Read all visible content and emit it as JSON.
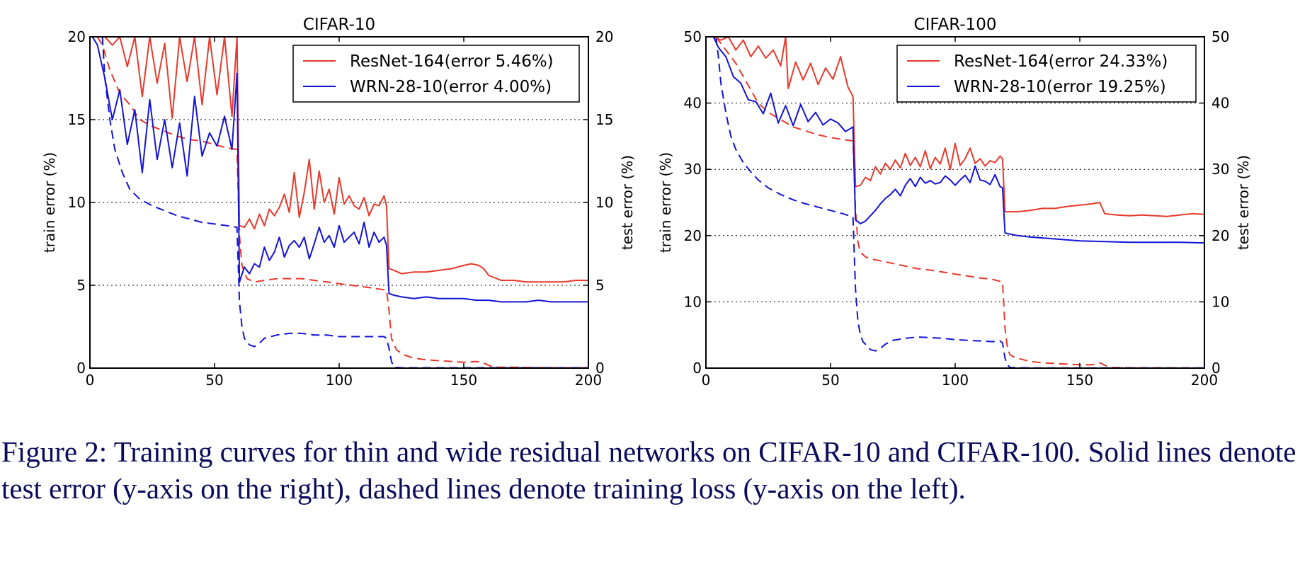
{
  "chart_data": [
    {
      "type": "line",
      "title": "CIFAR-10",
      "xlabel": "",
      "ylabel_left": "train error (%)",
      "ylabel_right": "test error (%)",
      "xlim": [
        0,
        200
      ],
      "ylim": [
        0,
        20
      ],
      "xticks": [
        "0",
        "50",
        "100",
        "150",
        "200"
      ],
      "yticks": [
        "0",
        "5",
        "10",
        "15",
        "20"
      ],
      "grid": "horizontal dotted",
      "legend_position": "top-right",
      "series": [
        {
          "name": "ResNet-164(error 5.46%)",
          "metric": "test",
          "color": "#e8392b",
          "x": [
            1,
            3,
            6,
            9,
            12,
            15,
            18,
            21,
            24,
            27,
            30,
            33,
            36,
            39,
            42,
            45,
            48,
            51,
            54,
            57,
            59,
            60,
            62,
            64,
            66,
            68,
            70,
            72,
            74,
            76,
            78,
            80,
            82,
            84,
            86,
            88,
            90,
            92,
            94,
            96,
            98,
            100,
            102,
            104,
            106,
            108,
            110,
            112,
            114,
            116,
            118,
            119,
            120,
            122,
            125,
            130,
            135,
            140,
            145,
            150,
            153,
            156,
            158,
            160,
            165,
            170,
            175,
            180,
            185,
            190,
            195,
            200
          ],
          "y": [
            20,
            20,
            20,
            19.5,
            20,
            18.2,
            20,
            16.4,
            20,
            17.2,
            19.6,
            15.1,
            20,
            17.3,
            20,
            15.9,
            20,
            16.5,
            20,
            15.2,
            20,
            8.6,
            8.5,
            9.0,
            8.4,
            9.3,
            8.6,
            9.6,
            9.2,
            9.7,
            10.5,
            9.4,
            11.8,
            9.1,
            10.6,
            12.6,
            9.6,
            11.9,
            10.0,
            10.8,
            9.3,
            11.5,
            9.9,
            10.4,
            9.8,
            9.6,
            10.3,
            9.2,
            9.9,
            9.8,
            10.4,
            9.8,
            6.0,
            5.9,
            5.7,
            5.8,
            5.8,
            5.9,
            6.0,
            6.2,
            6.3,
            6.2,
            6.0,
            5.6,
            5.3,
            5.3,
            5.2,
            5.2,
            5.2,
            5.2,
            5.3,
            5.3
          ]
        },
        {
          "name": "WRN-28-10(error 4.00%)",
          "metric": "test",
          "color": "#1414d6",
          "x": [
            1,
            3,
            6,
            9,
            12,
            15,
            18,
            21,
            24,
            27,
            30,
            33,
            36,
            39,
            42,
            45,
            48,
            51,
            54,
            57,
            59,
            60,
            62,
            64,
            66,
            68,
            70,
            72,
            74,
            76,
            78,
            80,
            82,
            84,
            86,
            88,
            90,
            92,
            94,
            96,
            98,
            100,
            102,
            104,
            106,
            108,
            110,
            112,
            114,
            116,
            118,
            119,
            120,
            122,
            125,
            130,
            135,
            140,
            145,
            150,
            155,
            160,
            165,
            170,
            175,
            180,
            185,
            190,
            195,
            200
          ],
          "y": [
            20,
            19.5,
            17.5,
            15.0,
            16.8,
            13.5,
            15.6,
            11.8,
            16.2,
            12.6,
            15.0,
            12.1,
            14.8,
            11.6,
            16.4,
            12.8,
            14.2,
            13.4,
            15.2,
            13.2,
            17.8,
            5.2,
            6.1,
            5.7,
            6.3,
            6.1,
            7.3,
            6.5,
            7.0,
            7.9,
            6.7,
            7.4,
            7.7,
            7.3,
            7.9,
            6.6,
            7.5,
            8.5,
            7.6,
            8.0,
            7.3,
            8.6,
            7.6,
            7.9,
            8.2,
            7.5,
            8.8,
            7.3,
            8.2,
            7.6,
            7.9,
            7.4,
            4.5,
            4.4,
            4.3,
            4.2,
            4.3,
            4.2,
            4.2,
            4.2,
            4.1,
            4.1,
            4.0,
            4.0,
            4.0,
            4.1,
            4.0,
            4.0,
            4.0,
            4.0
          ]
        },
        {
          "name": "",
          "metric": "train",
          "color": "#e8392b",
          "x": [
            3,
            5,
            8,
            12,
            16,
            20,
            25,
            30,
            35,
            40,
            45,
            50,
            55,
            59,
            60,
            61,
            63,
            66,
            70,
            75,
            80,
            85,
            90,
            95,
            100,
            105,
            110,
            115,
            119,
            120,
            121,
            123,
            126,
            130,
            135,
            140,
            145,
            150,
            155,
            158,
            162,
            170,
            180,
            190,
            200
          ],
          "y": [
            20,
            19.5,
            18.0,
            16.6,
            15.9,
            15.0,
            14.6,
            14.3,
            14.0,
            13.8,
            13.7,
            13.5,
            13.3,
            13.2,
            8.0,
            6.2,
            5.4,
            5.2,
            5.3,
            5.4,
            5.4,
            5.4,
            5.3,
            5.2,
            5.1,
            5.0,
            4.9,
            4.8,
            4.7,
            3.5,
            1.8,
            1.1,
            0.8,
            0.6,
            0.5,
            0.45,
            0.4,
            0.35,
            0.4,
            0.3,
            0.05,
            0.05,
            0.03,
            0.02,
            0.02
          ]
        },
        {
          "name": "",
          "metric": "train",
          "color": "#1414d6",
          "x": [
            5,
            6,
            8,
            10,
            13,
            16,
            20,
            25,
            30,
            35,
            40,
            45,
            50,
            55,
            59,
            60,
            61,
            62,
            64,
            66,
            68,
            70,
            75,
            80,
            85,
            90,
            95,
            100,
            105,
            110,
            115,
            118,
            119,
            120,
            121,
            122,
            125,
            130,
            140,
            150,
            160,
            170,
            180,
            190,
            200
          ],
          "y": [
            20,
            17.5,
            15.0,
            13.2,
            11.8,
            10.8,
            10.2,
            9.8,
            9.5,
            9.2,
            9.0,
            8.8,
            8.7,
            8.6,
            8.5,
            4.0,
            2.5,
            1.8,
            1.4,
            1.3,
            1.5,
            1.8,
            2.0,
            2.1,
            2.1,
            2.0,
            2.0,
            1.9,
            1.9,
            1.9,
            1.9,
            1.9,
            1.8,
            1.2,
            0.4,
            0.05,
            0.02,
            0.02,
            0.02,
            0.02,
            0.02,
            0.02,
            0.02,
            0.02,
            0.02
          ]
        }
      ]
    },
    {
      "type": "line",
      "title": "CIFAR-100",
      "xlabel": "",
      "ylabel_left": "train error (%)",
      "ylabel_right": "test error (%)",
      "xlim": [
        0,
        200
      ],
      "ylim": [
        0,
        50
      ],
      "xticks": [
        "0",
        "50",
        "100",
        "150",
        "200"
      ],
      "yticks": [
        "0",
        "10",
        "20",
        "30",
        "40",
        "50"
      ],
      "grid": "horizontal dotted",
      "legend_position": "top-right",
      "series": [
        {
          "name": "ResNet-164(error 24.33%)",
          "metric": "test",
          "color": "#e8392b",
          "x": [
            3,
            6,
            9,
            12,
            15,
            18,
            21,
            24,
            27,
            30,
            32,
            33,
            36,
            39,
            42,
            45,
            48,
            51,
            54,
            57,
            59,
            60,
            62,
            64,
            66,
            68,
            70,
            72,
            74,
            76,
            78,
            80,
            82,
            84,
            86,
            88,
            90,
            92,
            94,
            96,
            98,
            100,
            102,
            104,
            106,
            108,
            110,
            112,
            114,
            116,
            118,
            119,
            120,
            125,
            130,
            135,
            140,
            145,
            150,
            155,
            158,
            160,
            165,
            170,
            175,
            180,
            185,
            190,
            195,
            200
          ],
          "y": [
            50,
            49.5,
            50,
            48.0,
            49.5,
            47.0,
            48.6,
            46.8,
            48.0,
            45.6,
            50,
            42.2,
            46.2,
            43.5,
            46.0,
            42.8,
            45.3,
            43.6,
            47.0,
            42.4,
            41.0,
            27.4,
            27.6,
            28.8,
            28.3,
            30.4,
            29.3,
            30.9,
            30.0,
            31.4,
            30.2,
            32.4,
            30.6,
            31.8,
            30.4,
            32.8,
            30.1,
            31.8,
            30.8,
            33.2,
            30.0,
            33.9,
            30.6,
            31.6,
            33.2,
            30.9,
            31.6,
            30.5,
            31.3,
            31.0,
            32.0,
            31.6,
            23.6,
            23.6,
            23.8,
            24.1,
            24.1,
            24.4,
            24.6,
            24.8,
            25.0,
            23.3,
            23.1,
            23.0,
            23.1,
            23.0,
            22.9,
            23.1,
            23.3,
            23.2
          ]
        },
        {
          "name": "WRN-28-10(error 19.25%)",
          "metric": "test",
          "color": "#1414d6",
          "x": [
            3,
            5,
            8,
            11,
            14,
            17,
            20,
            23,
            26,
            29,
            32,
            35,
            38,
            41,
            44,
            47,
            50,
            53,
            56,
            59,
            60,
            62,
            64,
            66,
            68,
            70,
            72,
            74,
            76,
            78,
            80,
            82,
            84,
            86,
            88,
            90,
            92,
            94,
            96,
            98,
            100,
            102,
            104,
            106,
            108,
            110,
            112,
            114,
            116,
            118,
            119,
            120,
            125,
            130,
            140,
            150,
            160,
            170,
            180,
            190,
            200
          ],
          "y": [
            50,
            48.4,
            47.0,
            44.0,
            43.0,
            40.5,
            40.2,
            38.4,
            41.5,
            37.0,
            39.6,
            36.6,
            39.8,
            37.2,
            38.6,
            36.7,
            37.6,
            37.0,
            35.7,
            36.4,
            22.4,
            21.8,
            22.2,
            23.0,
            23.8,
            24.8,
            25.6,
            26.2,
            27.0,
            26.0,
            27.6,
            28.6,
            27.4,
            28.8,
            27.9,
            28.3,
            27.8,
            28.0,
            29.0,
            28.4,
            27.6,
            28.4,
            29.1,
            28.0,
            30.5,
            28.4,
            28.2,
            27.7,
            29.2,
            27.4,
            27.2,
            20.4,
            20.0,
            19.8,
            19.5,
            19.2,
            19.1,
            19.0,
            19.0,
            19.0,
            18.9
          ]
        },
        {
          "name": "",
          "metric": "train",
          "color": "#e8392b",
          "x": [
            4,
            6,
            8,
            10,
            12,
            15,
            18,
            21,
            25,
            30,
            35,
            40,
            45,
            50,
            55,
            59,
            60,
            61,
            62,
            64,
            66,
            70,
            75,
            80,
            85,
            90,
            95,
            100,
            105,
            110,
            115,
            119,
            120,
            121,
            122,
            124,
            127,
            130,
            135,
            140,
            145,
            150,
            155,
            158,
            162,
            170,
            180,
            190,
            200
          ],
          "y": [
            50,
            49.0,
            48.0,
            47.0,
            46.0,
            44.0,
            42.0,
            40.0,
            38.6,
            37.5,
            36.4,
            35.8,
            35.2,
            34.8,
            34.5,
            34.3,
            24.0,
            19.0,
            17.5,
            16.8,
            16.5,
            16.2,
            15.8,
            15.4,
            15.0,
            14.8,
            14.5,
            14.2,
            13.9,
            13.6,
            13.4,
            13.0,
            6.0,
            3.0,
            2.0,
            1.6,
            1.3,
            1.0,
            0.8,
            0.7,
            0.6,
            0.5,
            0.5,
            0.8,
            0.1,
            0.05,
            0.04,
            0.03,
            0.03
          ]
        },
        {
          "name": "",
          "metric": "train",
          "color": "#1414d6",
          "x": [
            4,
            5,
            6,
            8,
            10,
            12,
            15,
            18,
            21,
            25,
            30,
            35,
            40,
            45,
            50,
            55,
            59,
            60,
            61,
            62,
            63,
            64,
            65,
            66,
            68,
            70,
            72,
            75,
            80,
            85,
            90,
            95,
            100,
            105,
            110,
            115,
            118,
            119,
            120,
            121,
            122,
            125,
            130,
            140,
            150,
            160,
            170,
            180,
            190,
            200
          ],
          "y": [
            50,
            47.0,
            43.0,
            38.5,
            35.0,
            33.0,
            31.0,
            29.6,
            28.4,
            27.2,
            26.2,
            25.4,
            24.8,
            24.3,
            23.8,
            23.3,
            22.8,
            12.0,
            7.0,
            5.0,
            4.0,
            3.6,
            3.2,
            2.8,
            2.6,
            3.0,
            3.6,
            4.2,
            4.5,
            4.7,
            4.6,
            4.5,
            4.3,
            4.2,
            4.1,
            4.0,
            4.1,
            3.8,
            1.5,
            0.5,
            0.1,
            0.05,
            0.03,
            0.02,
            0.02,
            0.02,
            0.02,
            0.02,
            0.02,
            0.02
          ]
        }
      ]
    }
  ],
  "caption": {
    "text": "Figure 2: Training curves for thin and wide residual networks on CIFAR-10 and CIFAR-100. Solid lines denote test error (y-axis on the right), dashed lines denote training loss (y-axis on the left)."
  }
}
